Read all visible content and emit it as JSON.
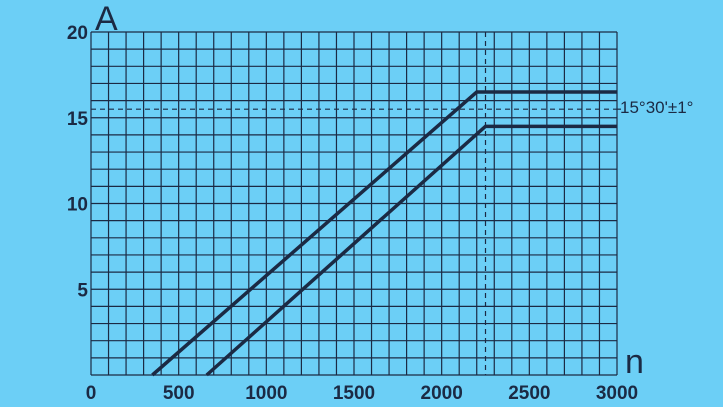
{
  "chart_data": {
    "type": "line",
    "xlabel": "n",
    "ylabel": "A",
    "xlim": [
      0,
      3000
    ],
    "ylim": [
      0,
      20
    ],
    "x_ticks": [
      0,
      500,
      1000,
      1500,
      2000,
      2500,
      3000
    ],
    "x_tick_labels": [
      "0",
      "500",
      "1000",
      "1500",
      "2000",
      "2500",
      "3000"
    ],
    "y_ticks": [
      5,
      10,
      15,
      20
    ],
    "y_tick_labels": [
      "5",
      "10",
      "15",
      "20"
    ],
    "grid": true,
    "grid_step_x": 100,
    "grid_step_y": 1,
    "series": [
      {
        "x": [
          350,
          2200,
          3000
        ],
        "y": [
          0,
          16.5,
          16.5
        ]
      },
      {
        "x": [
          660,
          2250,
          3000
        ],
        "y": [
          0,
          14.5,
          14.5
        ]
      }
    ],
    "reference_lines": [
      {
        "orientation": "horizontal",
        "y": 15.5
      },
      {
        "orientation": "vertical",
        "x": 2250
      }
    ],
    "annotations": [
      {
        "text": "15°30'±1°",
        "y": 15.5
      }
    ],
    "colors": {
      "background": "#6ccff6",
      "line": "#1b2a44"
    }
  }
}
